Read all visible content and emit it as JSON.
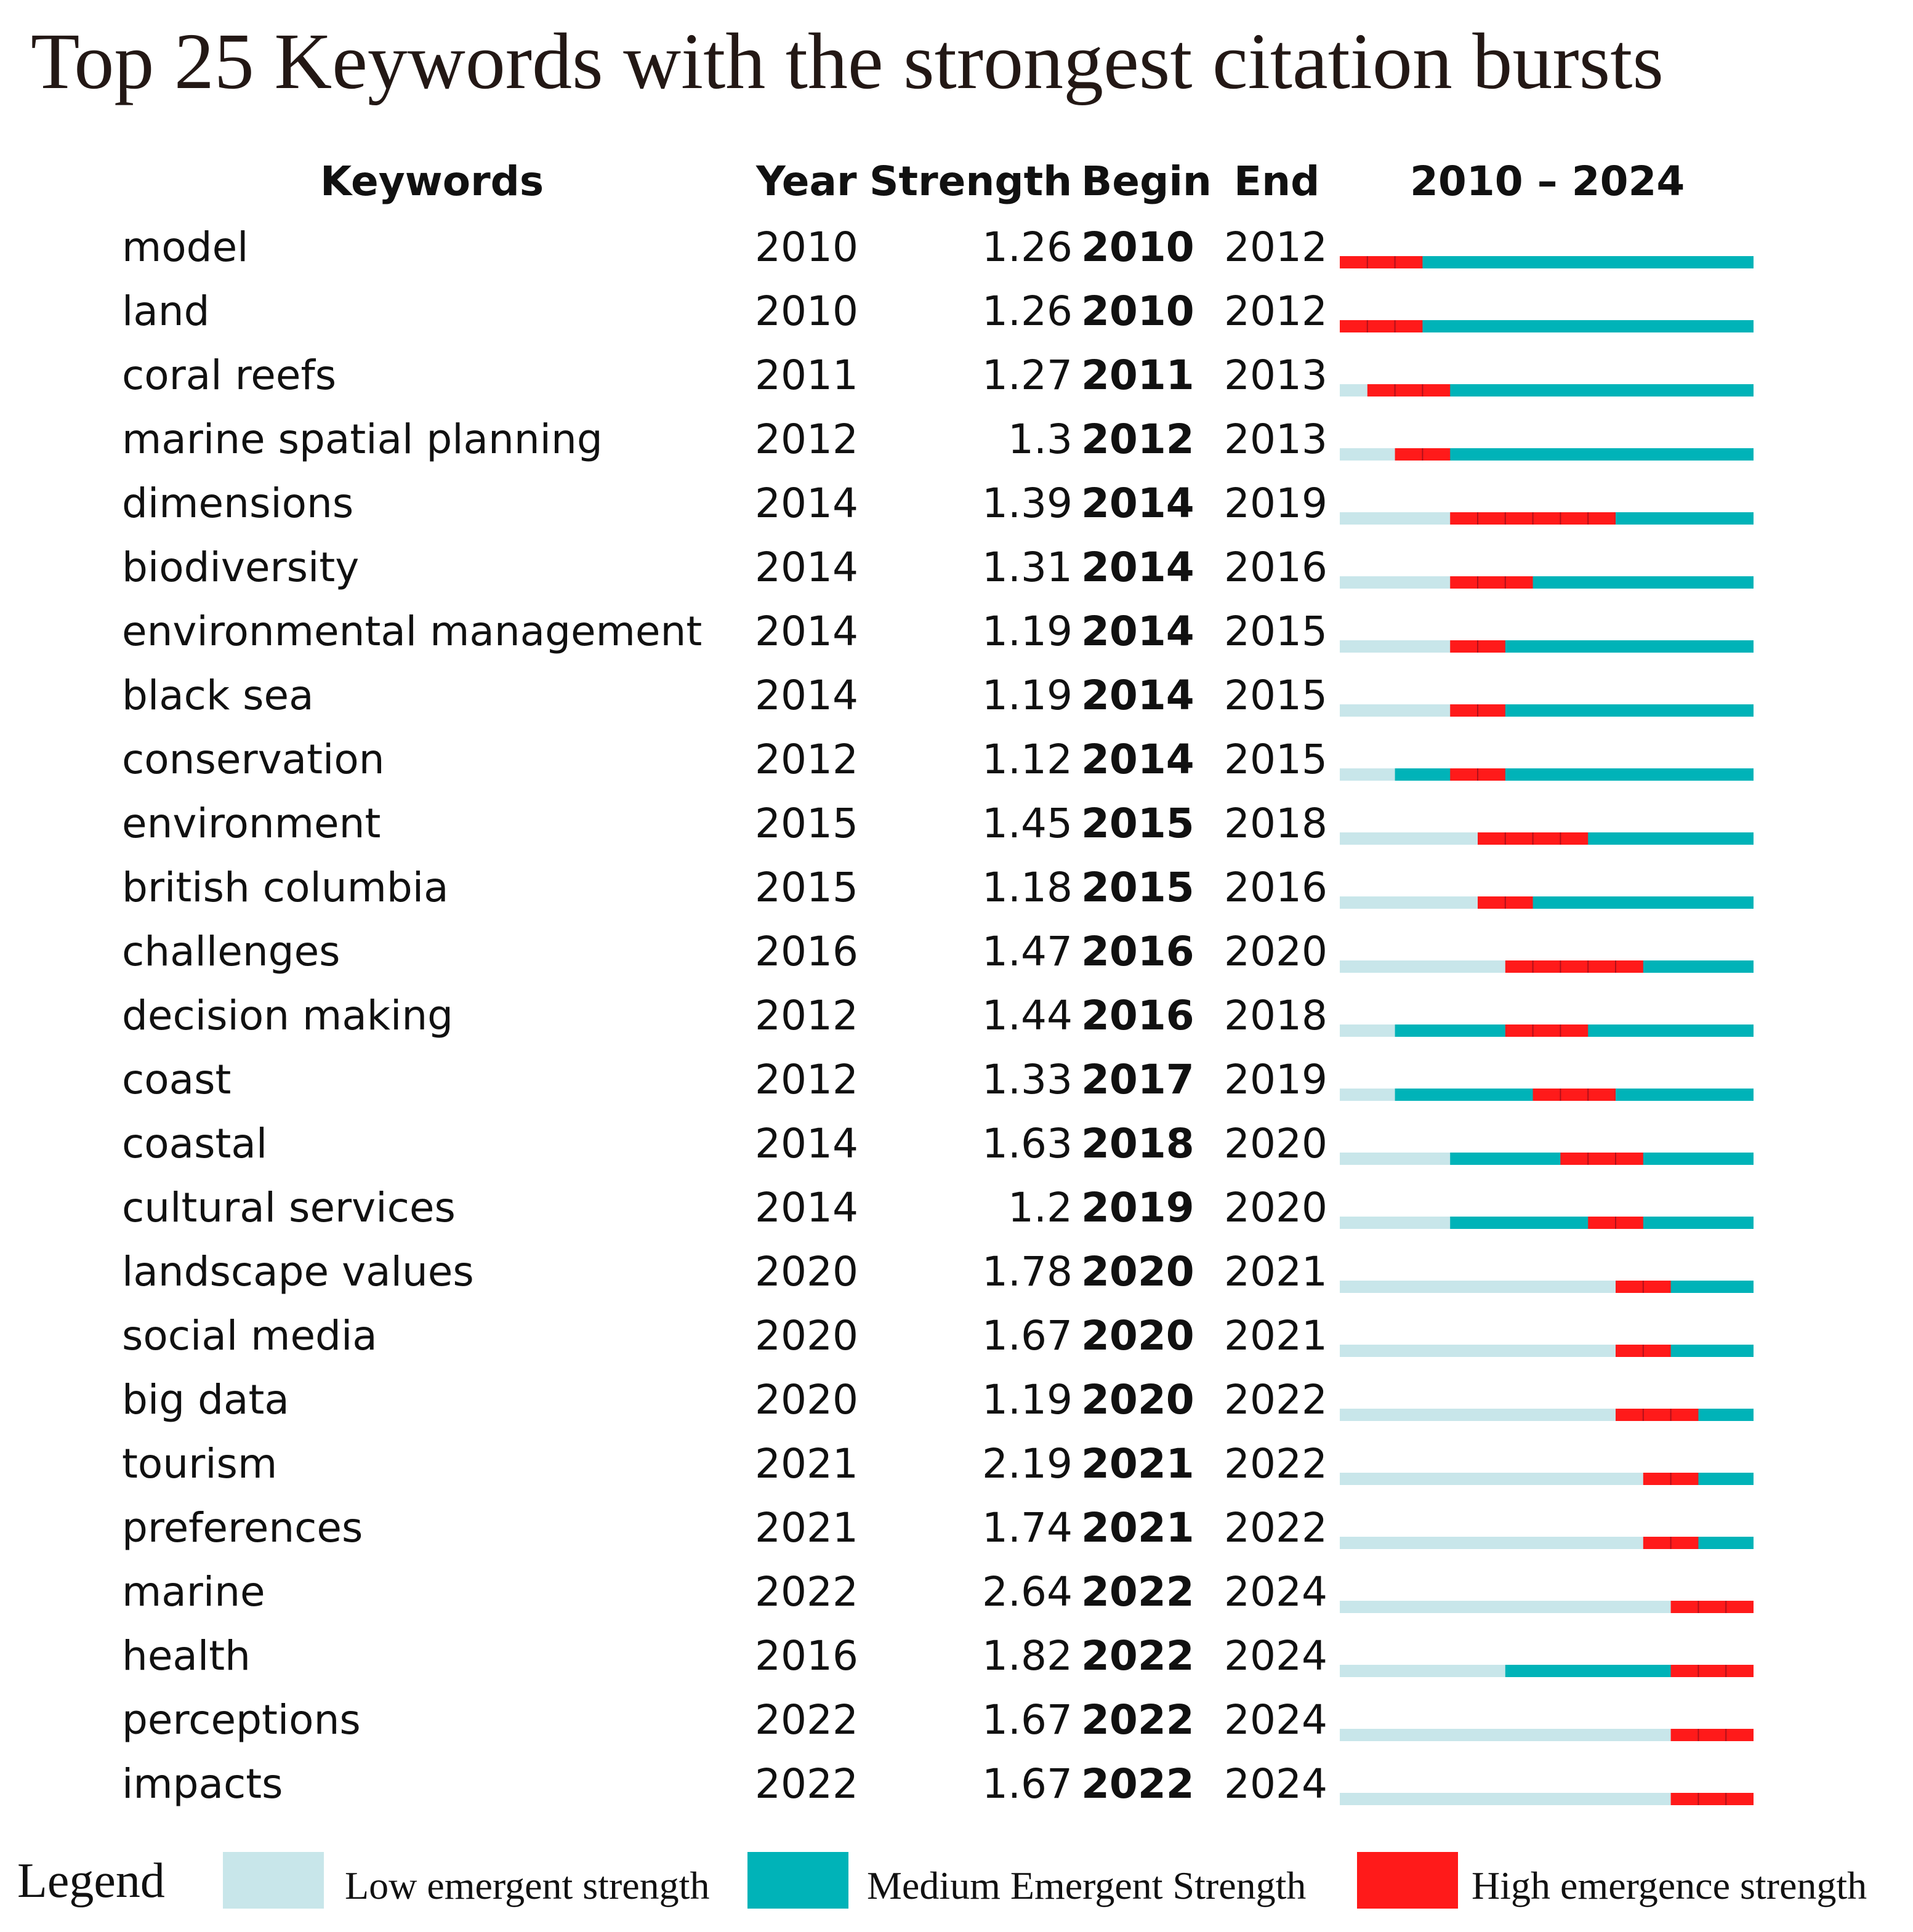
{
  "chart_data": {
    "type": "table",
    "title": "Top 25 Keywords with the strongest citation bursts",
    "headers": {
      "keywords": "Keywords",
      "year": "Year",
      "strength": "Strength",
      "begin": "Begin",
      "end": "End",
      "range": "2010 – 2024"
    },
    "range_start": 2010,
    "range_end": 2024,
    "rows": [
      {
        "keyword": "model",
        "year": "2010",
        "strength": "1.26",
        "begin": "2010",
        "end": "2012"
      },
      {
        "keyword": "land",
        "year": "2010",
        "strength": "1.26",
        "begin": "2010",
        "end": "2012"
      },
      {
        "keyword": "coral reefs",
        "year": "2011",
        "strength": "1.27",
        "begin": "2011",
        "end": "2013"
      },
      {
        "keyword": "marine spatial planning",
        "year": "2012",
        "strength": "1.3",
        "begin": "2012",
        "end": "2013"
      },
      {
        "keyword": "dimensions",
        "year": "2014",
        "strength": "1.39",
        "begin": "2014",
        "end": "2019"
      },
      {
        "keyword": "biodiversity",
        "year": "2014",
        "strength": "1.31",
        "begin": "2014",
        "end": "2016"
      },
      {
        "keyword": "environmental management",
        "year": "2014",
        "strength": "1.19",
        "begin": "2014",
        "end": "2015"
      },
      {
        "keyword": "black sea",
        "year": "2014",
        "strength": "1.19",
        "begin": "2014",
        "end": "2015"
      },
      {
        "keyword": "conservation",
        "year": "2012",
        "strength": "1.12",
        "begin": "2014",
        "end": "2015"
      },
      {
        "keyword": "environment",
        "year": "2015",
        "strength": "1.45",
        "begin": "2015",
        "end": "2018"
      },
      {
        "keyword": "british columbia",
        "year": "2015",
        "strength": "1.18",
        "begin": "2015",
        "end": "2016"
      },
      {
        "keyword": "challenges",
        "year": "2016",
        "strength": "1.47",
        "begin": "2016",
        "end": "2020"
      },
      {
        "keyword": "decision making",
        "year": "2012",
        "strength": "1.44",
        "begin": "2016",
        "end": "2018"
      },
      {
        "keyword": "coast",
        "year": "2012",
        "strength": "1.33",
        "begin": "2017",
        "end": "2019"
      },
      {
        "keyword": "coastal",
        "year": "2014",
        "strength": "1.63",
        "begin": "2018",
        "end": "2020"
      },
      {
        "keyword": "cultural services",
        "year": "2014",
        "strength": "1.2",
        "begin": "2019",
        "end": "2020"
      },
      {
        "keyword": "landscape values",
        "year": "2020",
        "strength": "1.78",
        "begin": "2020",
        "end": "2021"
      },
      {
        "keyword": "social media",
        "year": "2020",
        "strength": "1.67",
        "begin": "2020",
        "end": "2021"
      },
      {
        "keyword": "big data",
        "year": "2020",
        "strength": "1.19",
        "begin": "2020",
        "end": "2022"
      },
      {
        "keyword": "tourism",
        "year": "2021",
        "strength": "2.19",
        "begin": "2021",
        "end": "2022"
      },
      {
        "keyword": "preferences",
        "year": "2021",
        "strength": "1.74",
        "begin": "2021",
        "end": "2022"
      },
      {
        "keyword": "marine",
        "year": "2022",
        "strength": "2.64",
        "begin": "2022",
        "end": "2024"
      },
      {
        "keyword": "health",
        "year": "2016",
        "strength": "1.82",
        "begin": "2022",
        "end": "2024"
      },
      {
        "keyword": "perceptions",
        "year": "2022",
        "strength": "1.67",
        "begin": "2022",
        "end": "2024"
      },
      {
        "keyword": "impacts",
        "year": "2022",
        "strength": "1.67",
        "begin": "2022",
        "end": "2024"
      }
    ],
    "legend": {
      "title": "Legend",
      "items": [
        {
          "label": "Low emergent strength",
          "color": "#c8e6ea"
        },
        {
          "label": "Medium Emergent Strength",
          "color": "#00b3b8"
        },
        {
          "label": "High emergence strength",
          "color": "#ff1a1a"
        }
      ]
    }
  },
  "colors": {
    "low": "#c8e6ea",
    "medium": "#00b3b8",
    "high": "#ff1a1a",
    "divider": "#b0101a"
  }
}
